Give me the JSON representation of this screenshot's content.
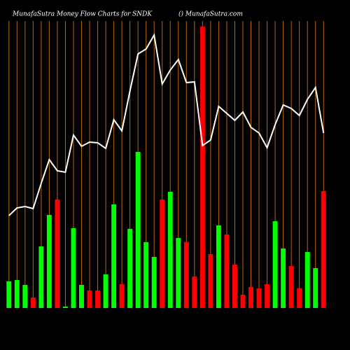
{
  "chart_data": {
    "type": "bar-line",
    "title": "MunafaSutra  Money Flow  Charts for SNDK",
    "subtitle": "() MunafaSutra.com",
    "categories": [
      null,
      null,
      null,
      null,
      null,
      null,
      null,
      null,
      null,
      null,
      null,
      null,
      null,
      null,
      null,
      null,
      null,
      null,
      null,
      null,
      null,
      null,
      null,
      null,
      null,
      null,
      null,
      null,
      null,
      null,
      null,
      null,
      null,
      null,
      null,
      null,
      null,
      null,
      null,
      null
    ],
    "bars": {
      "values": [
        38,
        40,
        33,
        15,
        88,
        133,
        155,
        2,
        114,
        33,
        25,
        25,
        48,
        148,
        34,
        113,
        223,
        94,
        73,
        155,
        166,
        100,
        94,
        45,
        402,
        77,
        118,
        105,
        62,
        19,
        30,
        28,
        34,
        124,
        85,
        60,
        28,
        80,
        57,
        167
      ],
      "colors": [
        "#00ff00",
        "#00ff00",
        "#00ff00",
        "#ff0000",
        "#00ff00",
        "#00ff00",
        "#ff0000",
        "#00ff00",
        "#00ff00",
        "#00ff00",
        "#ff0000",
        "#ff0000",
        "#00ff00",
        "#00ff00",
        "#ff0000",
        "#00ff00",
        "#00ff00",
        "#00ff00",
        "#00ff00",
        "#ff0000",
        "#00ff00",
        "#00ff00",
        "#ff0000",
        "#ff0000",
        "#ff0000",
        "#ff0000",
        "#00ff00",
        "#ff0000",
        "#ff0000",
        "#ff0000",
        "#ff0000",
        "#ff0000",
        "#ff0000",
        "#00ff00",
        "#00ff00",
        "#ff0000",
        "#ff0000",
        "#00ff00",
        "#00ff00",
        "#ff0000"
      ]
    },
    "line": {
      "color": "#ffffff",
      "values": [
        132,
        143,
        145,
        142,
        178,
        212,
        196,
        194,
        247,
        231,
        237,
        236,
        228,
        269,
        253,
        310,
        363,
        370,
        390,
        320,
        340,
        355,
        322,
        323,
        232,
        240,
        288,
        278,
        268,
        280,
        258,
        250,
        229,
        262,
        290,
        285,
        275,
        298,
        315,
        250
      ]
    },
    "ylim": [
      0,
      410
    ],
    "grid": true,
    "grid_color": "#b8650a"
  }
}
